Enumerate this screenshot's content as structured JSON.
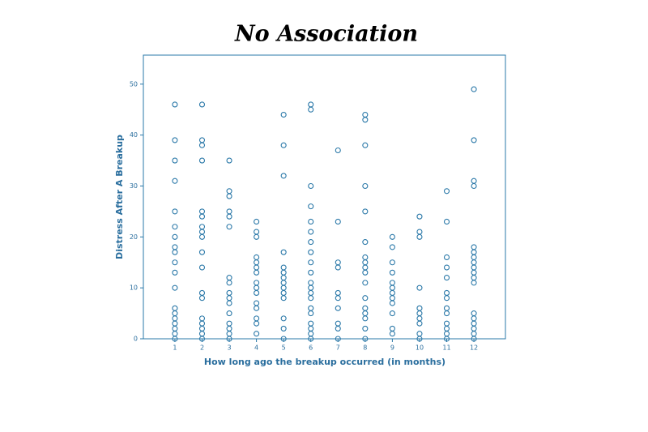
{
  "chart_data": {
    "type": "scatter",
    "title": "No Association",
    "x_label": "How long ago the breakup occurred (in months)",
    "y_label": "Distress After  A Breakup",
    "color": "#2a78a8",
    "xlim": [
      -0.16,
      13.16
    ],
    "ylim": [
      0,
      55.7
    ],
    "xticks": [
      1,
      2,
      3,
      4,
      5,
      6,
      7,
      8,
      9,
      10,
      11,
      12
    ],
    "yticks": [
      0,
      10,
      20,
      30,
      40,
      50
    ],
    "x": [
      1,
      1,
      1,
      1,
      1,
      1,
      1,
      1,
      1,
      1,
      1,
      1,
      1,
      1,
      1,
      1,
      1,
      1,
      1,
      2,
      2,
      2,
      2,
      2,
      2,
      2,
      2,
      2,
      2,
      2,
      2,
      2,
      2,
      2,
      2,
      2,
      2,
      3,
      3,
      3,
      3,
      3,
      3,
      3,
      3,
      3,
      3,
      3,
      3,
      3,
      3,
      3,
      3,
      4,
      4,
      4,
      4,
      4,
      4,
      4,
      4,
      4,
      4,
      4,
      4,
      4,
      4,
      4,
      5,
      5,
      5,
      5,
      5,
      5,
      5,
      5,
      5,
      5,
      5,
      5,
      5,
      5,
      6,
      6,
      6,
      6,
      6,
      6,
      6,
      6,
      6,
      6,
      6,
      6,
      6,
      6,
      6,
      6,
      6,
      6,
      6,
      6,
      7,
      7,
      7,
      7,
      7,
      7,
      7,
      7,
      7,
      7,
      8,
      8,
      8,
      8,
      8,
      8,
      8,
      8,
      8,
      8,
      8,
      8,
      8,
      8,
      8,
      8,
      8,
      9,
      9,
      9,
      9,
      9,
      9,
      9,
      9,
      9,
      9,
      9,
      9,
      10,
      10,
      10,
      10,
      10,
      10,
      10,
      10,
      10,
      10,
      11,
      11,
      11,
      11,
      11,
      11,
      11,
      11,
      11,
      11,
      11,
      11,
      11,
      12,
      12,
      12,
      12,
      12,
      12,
      12,
      12,
      12,
      12,
      12,
      12,
      12,
      12,
      12,
      12,
      12,
      12
    ],
    "values": [
      46,
      39,
      35,
      31,
      25,
      22,
      20,
      18,
      17,
      15,
      13,
      10,
      6,
      5,
      4,
      3,
      2,
      1,
      0,
      46,
      39,
      38,
      35,
      25,
      24,
      22,
      21,
      20,
      17,
      14,
      9,
      8,
      4,
      3,
      2,
      1,
      0,
      35,
      29,
      28,
      25,
      24,
      22,
      12,
      11,
      9,
      8,
      7,
      5,
      3,
      2,
      1,
      0,
      23,
      21,
      20,
      16,
      15,
      14,
      13,
      11,
      10,
      9,
      7,
      6,
      4,
      3,
      1,
      44,
      38,
      32,
      17,
      14,
      13,
      12,
      11,
      10,
      9,
      8,
      4,
      2,
      0,
      46,
      45,
      30,
      26,
      23,
      21,
      19,
      17,
      15,
      13,
      11,
      10,
      9,
      8,
      6,
      5,
      3,
      2,
      1,
      0,
      37,
      23,
      15,
      14,
      9,
      8,
      6,
      3,
      2,
      0,
      44,
      43,
      38,
      30,
      25,
      19,
      16,
      15,
      14,
      13,
      11,
      8,
      6,
      5,
      4,
      2,
      0,
      20,
      18,
      15,
      13,
      11,
      10,
      9,
      8,
      7,
      5,
      2,
      1,
      24,
      21,
      20,
      10,
      6,
      5,
      4,
      3,
      1,
      0,
      29,
      23,
      16,
      14,
      12,
      9,
      8,
      6,
      5,
      3,
      2,
      1,
      0,
      49,
      39,
      31,
      30,
      18,
      17,
      16,
      15,
      14,
      13,
      12,
      11,
      5,
      4,
      3,
      2,
      1,
      0
    ]
  }
}
